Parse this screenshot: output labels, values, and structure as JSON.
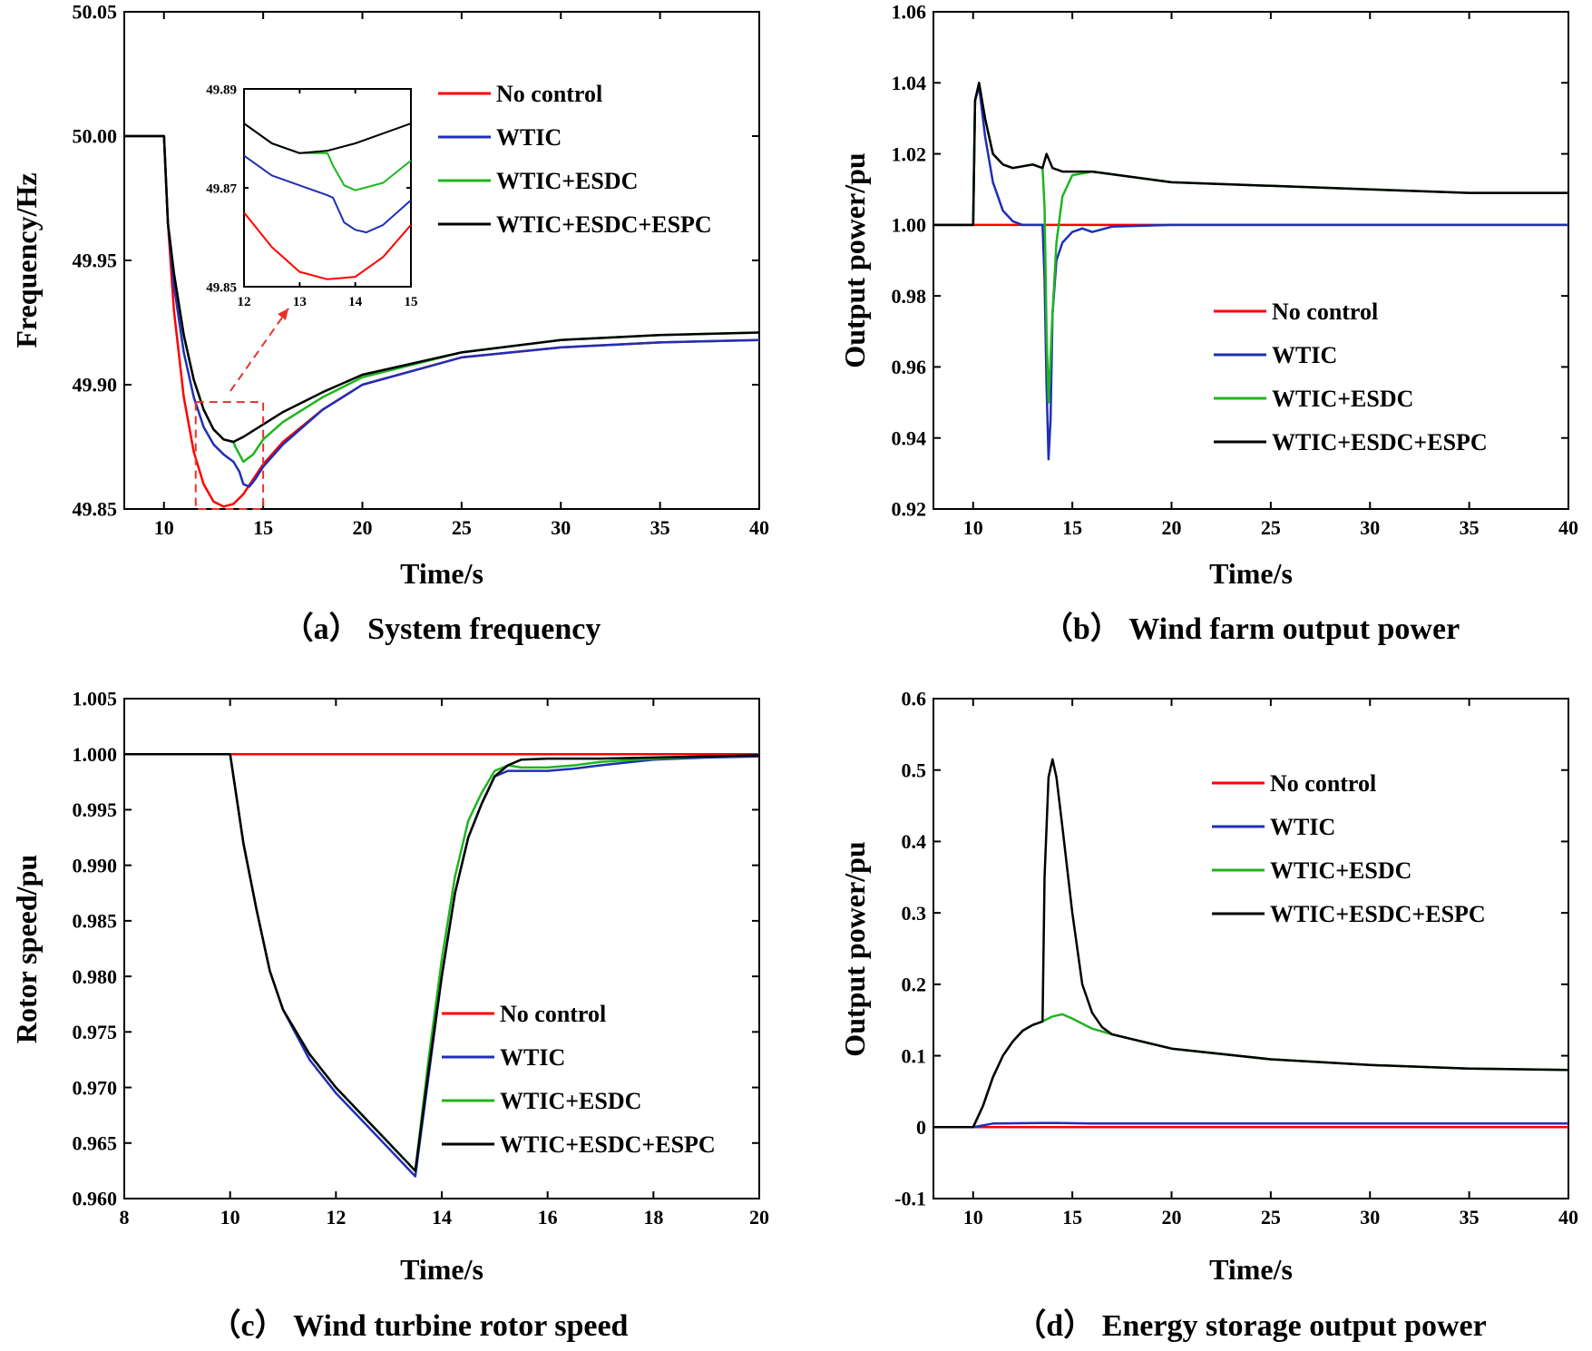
{
  "colors": {
    "no_control": "#ff0000",
    "wtic": "#1f2fb5",
    "esdc": "#1fb51f",
    "espc": "#000000"
  },
  "legend": [
    "No control",
    "WTIC",
    "WTIC+ESDC",
    "WTIC+ESDC+ESPC"
  ],
  "chart_data": [
    {
      "id": "a",
      "type": "line",
      "title": "（a） System frequency",
      "xlabel": "Time/s",
      "ylabel": "Frequency/Hz",
      "xlim": [
        8,
        40
      ],
      "ylim": [
        49.85,
        50.05
      ],
      "xticks": [
        10,
        15,
        20,
        25,
        30,
        35,
        40
      ],
      "xtick_labels": [
        "10",
        "15",
        "20",
        "25",
        "30",
        "35",
        "40"
      ],
      "yticks": [
        49.85,
        49.9,
        49.95,
        50.0,
        50.05
      ],
      "ytick_labels": [
        "49.85",
        "49.90",
        "49.95",
        "50.00",
        "50.05"
      ],
      "series": [
        {
          "name": "No control",
          "x": [
            8,
            10,
            10.2,
            10.5,
            11,
            11.5,
            12,
            12.5,
            13,
            13.5,
            14,
            14.5,
            15,
            16,
            18,
            20,
            25,
            30,
            35,
            40
          ],
          "y": [
            50.0,
            50.0,
            49.965,
            49.93,
            49.895,
            49.873,
            49.86,
            49.853,
            49.851,
            49.852,
            49.856,
            49.862,
            49.868,
            49.877,
            49.89,
            49.9,
            49.911,
            49.915,
            49.917,
            49.918
          ]
        },
        {
          "name": "WTIC",
          "x": [
            8,
            10,
            10.2,
            10.5,
            11,
            11.5,
            12,
            12.5,
            13,
            13.5,
            13.8,
            14,
            14.3,
            14.6,
            15,
            16,
            18,
            20,
            25,
            30,
            35,
            40
          ],
          "y": [
            50.0,
            50.0,
            49.965,
            49.94,
            49.913,
            49.895,
            49.883,
            49.876,
            49.872,
            49.869,
            49.865,
            49.86,
            49.859,
            49.862,
            49.867,
            49.876,
            49.89,
            49.9,
            49.911,
            49.915,
            49.917,
            49.918
          ]
        },
        {
          "name": "WTIC+ESDC",
          "x": [
            8,
            10,
            10.2,
            10.5,
            11,
            11.5,
            12,
            12.5,
            13,
            13.5,
            13.6,
            13.8,
            14,
            14.5,
            15,
            16,
            18,
            20,
            25,
            30,
            35,
            40
          ],
          "y": [
            50.0,
            50.0,
            49.965,
            49.945,
            49.92,
            49.902,
            49.89,
            49.882,
            49.878,
            49.877,
            49.875,
            49.872,
            49.869,
            49.872,
            49.878,
            49.885,
            49.895,
            49.903,
            49.913,
            49.918,
            49.92,
            49.921
          ]
        },
        {
          "name": "WTIC+ESDC+ESPC",
          "x": [
            8,
            10,
            10.2,
            10.5,
            11,
            11.5,
            12,
            12.5,
            13,
            13.5,
            14,
            15,
            16,
            18,
            20,
            25,
            30,
            35,
            40
          ],
          "y": [
            50.0,
            50.0,
            49.965,
            49.945,
            49.92,
            49.902,
            49.89,
            49.882,
            49.878,
            49.877,
            49.879,
            49.884,
            49.889,
            49.897,
            49.904,
            49.913,
            49.918,
            49.92,
            49.921
          ]
        }
      ],
      "highlight_box": {
        "x": [
          11.6,
          15
        ],
        "y": [
          49.85,
          49.893
        ]
      },
      "inset": {
        "xlim": [
          12,
          15
        ],
        "ylim": [
          49.85,
          49.89
        ],
        "xticks": [
          12,
          13,
          14,
          15
        ],
        "xtick_labels": [
          "12",
          "13",
          "14",
          "15"
        ],
        "yticks": [
          49.85,
          49.87,
          49.89
        ],
        "ytick_labels": [
          "49.85",
          "49.87",
          "49.89"
        ],
        "series": [
          {
            "name": "No control",
            "x": [
              12,
              12.5,
              13,
              13.5,
              14,
              14.5,
              15
            ],
            "y": [
              49.865,
              49.858,
              49.853,
              49.8515,
              49.852,
              49.856,
              49.8625
            ]
          },
          {
            "name": "WTIC",
            "x": [
              12,
              12.5,
              13,
              13.5,
              13.6,
              13.8,
              14,
              14.2,
              14.5,
              15
            ],
            "y": [
              49.8765,
              49.8725,
              49.8705,
              49.8685,
              49.868,
              49.863,
              49.8615,
              49.861,
              49.8625,
              49.8675
            ]
          },
          {
            "name": "WTIC+ESDC",
            "x": [
              12,
              12.5,
              13,
              13.5,
              13.6,
              13.8,
              14,
              14.5,
              15
            ],
            "y": [
              49.883,
              49.879,
              49.877,
              49.877,
              49.8745,
              49.8705,
              49.8695,
              49.871,
              49.8755
            ]
          },
          {
            "name": "WTIC+ESDC+ESPC",
            "x": [
              12,
              12.5,
              13,
              13.5,
              14,
              14.5,
              15
            ],
            "y": [
              49.883,
              49.879,
              49.877,
              49.8775,
              49.879,
              49.881,
              49.883
            ]
          }
        ]
      }
    },
    {
      "id": "b",
      "type": "line",
      "title": "（b） Wind farm output power",
      "xlabel": "Time/s",
      "ylabel": "Output power/pu",
      "xlim": [
        8,
        40
      ],
      "ylim": [
        0.92,
        1.06
      ],
      "xticks": [
        10,
        15,
        20,
        25,
        30,
        35,
        40
      ],
      "xtick_labels": [
        "10",
        "15",
        "20",
        "25",
        "30",
        "35",
        "40"
      ],
      "yticks": [
        0.92,
        0.94,
        0.96,
        0.98,
        1.0,
        1.02,
        1.04,
        1.06
      ],
      "ytick_labels": [
        "0.92",
        "0.94",
        "0.96",
        "0.98",
        "1.00",
        "1.02",
        "1.04",
        "1.06"
      ],
      "series": [
        {
          "name": "No control",
          "x": [
            8,
            40
          ],
          "y": [
            1.0,
            1.0
          ]
        },
        {
          "name": "WTIC",
          "x": [
            8,
            10,
            10.1,
            10.3,
            10.6,
            11,
            11.5,
            12,
            12.5,
            13,
            13.5,
            13.6,
            13.7,
            13.8,
            13.9,
            14,
            14.2,
            14.5,
            15,
            15.5,
            16,
            17,
            20,
            40
          ],
          "y": [
            1.0,
            1.0,
            1.035,
            1.039,
            1.025,
            1.012,
            1.004,
            1.001,
            1.0,
            1.0,
            1.0,
            0.985,
            0.955,
            0.934,
            0.945,
            0.975,
            0.99,
            0.995,
            0.998,
            0.999,
            0.998,
            0.9995,
            1.0,
            1.0
          ]
        },
        {
          "name": "WTIC+ESDC",
          "x": [
            8,
            10,
            10.1,
            10.3,
            10.6,
            11,
            11.5,
            12,
            13,
            13.5,
            13.6,
            13.7,
            13.8,
            14,
            14.2,
            14.5,
            15,
            16,
            20,
            25,
            30,
            35,
            40
          ],
          "y": [
            1.0,
            1.0,
            1.035,
            1.04,
            1.03,
            1.02,
            1.017,
            1.016,
            1.017,
            1.016,
            1.005,
            0.97,
            0.95,
            0.975,
            0.995,
            1.008,
            1.014,
            1.015,
            1.012,
            1.011,
            1.01,
            1.009,
            1.009
          ]
        },
        {
          "name": "WTIC+ESDC+ESPC",
          "x": [
            8,
            10,
            10.1,
            10.3,
            10.6,
            11,
            11.5,
            12,
            13,
            13.5,
            13.7,
            14,
            14.5,
            15,
            16,
            20,
            25,
            30,
            35,
            40
          ],
          "y": [
            1.0,
            1.0,
            1.035,
            1.04,
            1.03,
            1.02,
            1.017,
            1.016,
            1.017,
            1.016,
            1.02,
            1.016,
            1.015,
            1.015,
            1.015,
            1.012,
            1.011,
            1.01,
            1.009,
            1.009
          ]
        }
      ]
    },
    {
      "id": "c",
      "type": "line",
      "title": "（c） Wind turbine rotor speed",
      "xlabel": "Time/s",
      "ylabel": "Rotor speed/pu",
      "xlim": [
        8,
        20
      ],
      "ylim": [
        0.96,
        1.005
      ],
      "xticks": [
        8,
        10,
        12,
        14,
        16,
        18,
        20
      ],
      "xtick_labels": [
        "8",
        "10",
        "12",
        "14",
        "16",
        "18",
        "20"
      ],
      "yticks": [
        0.96,
        0.965,
        0.97,
        0.975,
        0.98,
        0.985,
        0.99,
        0.995,
        1.0,
        1.005
      ],
      "ytick_labels": [
        "0.960",
        "0.965",
        "0.970",
        "0.975",
        "0.980",
        "0.985",
        "0.990",
        "0.995",
        "1.000",
        "1.005"
      ],
      "series": [
        {
          "name": "No control",
          "x": [
            8,
            10,
            12,
            14,
            16,
            18,
            20
          ],
          "y": [
            1.0,
            1.0,
            1.0,
            1.0,
            1.0,
            1.0,
            1.0
          ]
        },
        {
          "name": "WTIC",
          "x": [
            8,
            10,
            10.25,
            10.5,
            10.75,
            11,
            11.5,
            12,
            12.5,
            13,
            13.5,
            13.75,
            14,
            14.25,
            14.5,
            14.75,
            15,
            15.25,
            15.5,
            16,
            16.5,
            17,
            18,
            19,
            20
          ],
          "y": [
            1.0,
            1.0,
            0.992,
            0.986,
            0.9805,
            0.977,
            0.9725,
            0.9695,
            0.967,
            0.9645,
            0.962,
            0.971,
            0.98,
            0.9875,
            0.9925,
            0.9955,
            0.998,
            0.9985,
            0.9985,
            0.9985,
            0.9987,
            0.999,
            0.9995,
            0.9997,
            0.9998
          ]
        },
        {
          "name": "WTIC+ESDC",
          "x": [
            8,
            10,
            10.25,
            10.5,
            10.75,
            11,
            11.5,
            12,
            12.5,
            13,
            13.5,
            13.75,
            14,
            14.25,
            14.5,
            14.75,
            15,
            15.25,
            15.5,
            16,
            16.5,
            17,
            18,
            19,
            20
          ],
          "y": [
            1.0,
            1.0,
            0.992,
            0.986,
            0.9805,
            0.977,
            0.973,
            0.97,
            0.9675,
            0.965,
            0.9625,
            0.9725,
            0.9815,
            0.989,
            0.994,
            0.9965,
            0.9985,
            0.999,
            0.9988,
            0.9988,
            0.999,
            0.9993,
            0.9996,
            0.9998,
            0.9999
          ]
        },
        {
          "name": "WTIC+ESDC+ESPC",
          "x": [
            8,
            10,
            10.25,
            10.5,
            10.75,
            11,
            11.5,
            12,
            12.5,
            13,
            13.5,
            13.75,
            14,
            14.25,
            14.5,
            14.75,
            15,
            15.25,
            15.5,
            16,
            17,
            18,
            19,
            20
          ],
          "y": [
            1.0,
            1.0,
            0.992,
            0.986,
            0.9805,
            0.977,
            0.973,
            0.97,
            0.9675,
            0.965,
            0.9625,
            0.9715,
            0.98,
            0.9875,
            0.9925,
            0.9955,
            0.998,
            0.999,
            0.9995,
            0.9996,
            0.9996,
            0.9997,
            0.9998,
            0.9999
          ]
        }
      ]
    },
    {
      "id": "d",
      "type": "line",
      "title": "（d） Energy storage output power",
      "xlabel": "Time/s",
      "ylabel": "Output power/pu",
      "xlim": [
        8,
        40
      ],
      "ylim": [
        -0.1,
        0.6
      ],
      "xticks": [
        10,
        15,
        20,
        25,
        30,
        35,
        40
      ],
      "xtick_labels": [
        "10",
        "15",
        "20",
        "25",
        "30",
        "35",
        "40"
      ],
      "yticks": [
        -0.1,
        0.0,
        0.1,
        0.2,
        0.3,
        0.4,
        0.5,
        0.6
      ],
      "ytick_labels": [
        "-0.1",
        "0",
        "0.1",
        "0.2",
        "0.3",
        "0.4",
        "0.5",
        "0.6"
      ],
      "series": [
        {
          "name": "No control",
          "x": [
            8,
            40
          ],
          "y": [
            0.0,
            0.0
          ]
        },
        {
          "name": "WTIC",
          "x": [
            8,
            10,
            11,
            14,
            16,
            40
          ],
          "y": [
            0.0,
            0.0,
            0.005,
            0.006,
            0.005,
            0.005
          ]
        },
        {
          "name": "WTIC+ESDC",
          "x": [
            8,
            10,
            10.5,
            11,
            11.5,
            12,
            12.5,
            13,
            13.5,
            14,
            14.5,
            15,
            16,
            17,
            20,
            25,
            30,
            35,
            40
          ],
          "y": [
            0.0,
            0.0,
            0.03,
            0.07,
            0.1,
            0.12,
            0.135,
            0.143,
            0.148,
            0.155,
            0.158,
            0.152,
            0.138,
            0.13,
            0.11,
            0.095,
            0.087,
            0.082,
            0.08
          ]
        },
        {
          "name": "WTIC+ESDC+ESPC",
          "x": [
            8,
            10,
            10.5,
            11,
            11.5,
            12,
            12.5,
            13,
            13.5,
            13.6,
            13.8,
            14,
            14.2,
            14.5,
            15,
            15.5,
            16,
            16.5,
            17,
            20,
            25,
            30,
            35,
            40
          ],
          "y": [
            0.0,
            0.0,
            0.03,
            0.07,
            0.1,
            0.12,
            0.135,
            0.143,
            0.148,
            0.35,
            0.49,
            0.515,
            0.49,
            0.42,
            0.3,
            0.2,
            0.16,
            0.14,
            0.13,
            0.11,
            0.095,
            0.087,
            0.082,
            0.08
          ]
        }
      ]
    }
  ]
}
